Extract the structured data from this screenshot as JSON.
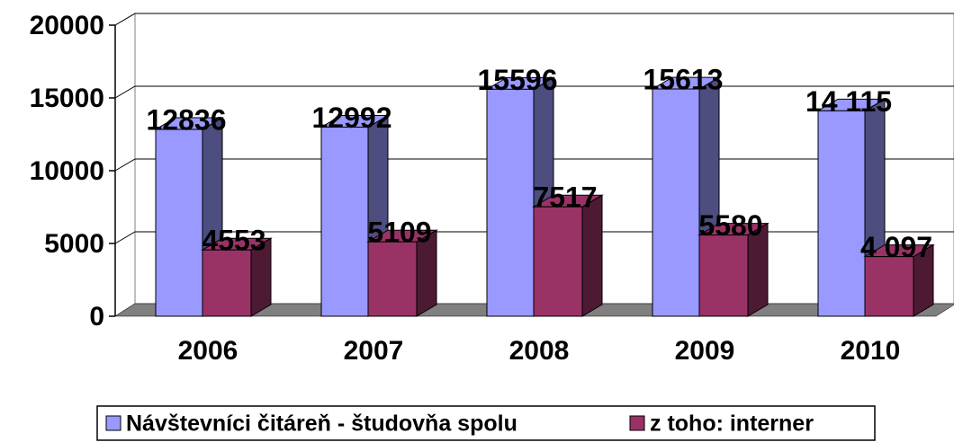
{
  "chart_data": {
    "type": "bar3d",
    "categories": [
      "2006",
      "2007",
      "2008",
      "2009",
      "2010"
    ],
    "series": [
      {
        "name": "Návštevníci čitáreň - študovňa spolu",
        "color": "#9999ff",
        "values": [
          12836,
          12992,
          15596,
          15613,
          14115
        ],
        "value_labels": [
          "12836",
          "12992",
          "15596",
          "15613",
          "14 115"
        ]
      },
      {
        "name": "z toho: interner",
        "color": "#993366",
        "values": [
          4553,
          5109,
          7517,
          5580,
          4097
        ],
        "value_labels": [
          "4553",
          "5109",
          "7517",
          "5580",
          "4 097"
        ]
      }
    ],
    "ylim": [
      0,
      20000
    ],
    "yticks": [
      0,
      5000,
      10000,
      15000,
      20000
    ],
    "grid": true,
    "legend": "bottom"
  }
}
